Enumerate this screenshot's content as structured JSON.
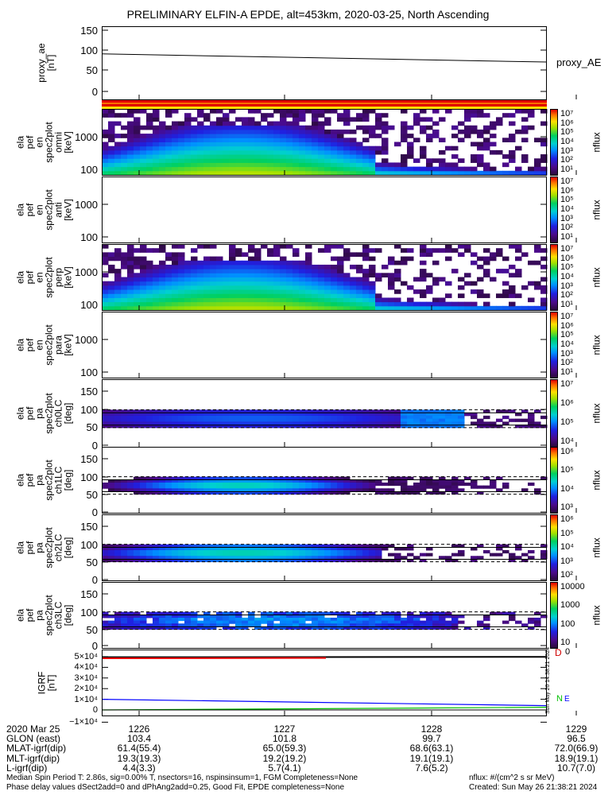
{
  "title": "PRELIMINARY ELFIN-A EPDE, alt=453km, 2020-03-25, North Ascending",
  "colors": {
    "proxy_line": "#000000",
    "igrf_total": "#000000",
    "igrf_x": "#ff0000",
    "igrf_y": "#0000ff",
    "igrf_z": "#00c000"
  },
  "panels": [
    {
      "id": "proxy_ae",
      "ylabel": [
        "proxy_ae",
        "[nT]"
      ],
      "yticks": [
        "150",
        "100",
        "50",
        "0"
      ],
      "right_label": "proxy_AE"
    },
    {
      "id": "omni",
      "ylabel": [
        "ela",
        "pef",
        "en",
        "spec2plot",
        "omni",
        "[keV]"
      ],
      "yticks": [
        "1000",
        "100"
      ],
      "cbar": [
        "10⁷",
        "10⁶",
        "10⁵",
        "10⁴",
        "10³",
        "10²",
        "10¹"
      ],
      "cbar_label": "nflux"
    },
    {
      "id": "anti",
      "ylabel": [
        "ela",
        "pef",
        "en",
        "spec2plot",
        "anti",
        "[keV]"
      ],
      "yticks": [
        "1000",
        "100"
      ],
      "cbar": [
        "10⁷",
        "10⁶",
        "10⁵",
        "10⁴",
        "10³",
        "10²",
        "10¹"
      ],
      "cbar_label": "nflux"
    },
    {
      "id": "perp",
      "ylabel": [
        "ela",
        "pef",
        "en",
        "spec2plot",
        "perp",
        "[keV]"
      ],
      "yticks": [
        "1000",
        "100"
      ],
      "cbar": [
        "10⁷",
        "10⁶",
        "10⁵",
        "10⁴",
        "10³",
        "10²",
        "10¹"
      ],
      "cbar_label": "nflux"
    },
    {
      "id": "para",
      "ylabel": [
        "ela",
        "pef",
        "en",
        "spec2plot",
        "para",
        "[keV]"
      ],
      "yticks": [
        "1000",
        "100"
      ],
      "cbar": [
        "10⁷",
        "10⁶",
        "10⁵",
        "10⁴",
        "10³",
        "10²",
        "10¹"
      ],
      "cbar_label": "nflux"
    },
    {
      "id": "ch0LC",
      "ylabel": [
        "ela",
        "pef",
        "pa",
        "spec2plot",
        "ch0LC",
        "[deg]"
      ],
      "yticks": [
        "150",
        "100",
        "50",
        "0"
      ],
      "cbar": [
        "10⁷",
        "10⁶",
        "10⁵",
        "10⁴"
      ],
      "cbar_label": "nflux"
    },
    {
      "id": "ch1LC",
      "ylabel": [
        "ela",
        "pef",
        "pa",
        "spec2plot",
        "ch1LC",
        "[deg]"
      ],
      "yticks": [
        "150",
        "100",
        "50",
        "0"
      ],
      "cbar": [
        "10⁶",
        "10⁵",
        "10⁴",
        "10³"
      ],
      "cbar_label": "nflux"
    },
    {
      "id": "ch2LC",
      "ylabel": [
        "ela",
        "pef",
        "pa",
        "spec2plot",
        "ch2LC",
        "[deg]"
      ],
      "yticks": [
        "150",
        "100",
        "50",
        "0"
      ],
      "cbar": [
        "10⁶",
        "10⁵",
        "10⁴",
        "10³",
        "10²"
      ],
      "cbar_label": "nflux"
    },
    {
      "id": "ch3LC",
      "ylabel": [
        "ela",
        "pef",
        "pa",
        "spec2plot",
        "ch3LC",
        "[deg]"
      ],
      "yticks": [
        "150",
        "100",
        "50",
        "0"
      ],
      "cbar": [
        "10000",
        "1000",
        "100",
        "10"
      ],
      "cbar_label": "nflux"
    },
    {
      "id": "igrf",
      "ylabel": [
        "IGRF",
        "[nT]"
      ],
      "yticks": [
        "5×10⁴",
        "4×10⁴",
        "3×10⁴",
        "2×10⁴",
        "1×10⁴",
        "0",
        "−1×10⁴"
      ]
    }
  ],
  "chart_data": {
    "type": "line",
    "title": "PRELIMINARY ELFIN-A EPDE, alt=453km, 2020-03-25, North Ascending",
    "x_ticks": [
      "1226",
      "1227",
      "1228",
      "1229"
    ],
    "proxy_ae": {
      "ylabel": "proxy_ae [nT]",
      "ylim": [
        -10,
        160
      ],
      "x": [
        0,
        1
      ],
      "values": [
        92,
        72
      ]
    },
    "igrf": {
      "ylabel": "IGRF [nT]",
      "ylim": [
        -15000,
        55000
      ],
      "series": [
        {
          "name": "total",
          "values": [
            49500,
            49800
          ]
        },
        {
          "name": "x",
          "values": [
            48500,
            48800
          ]
        },
        {
          "name": "y",
          "values": [
            10000,
            4000
          ]
        },
        {
          "name": "z",
          "values": [
            0,
            2500
          ]
        }
      ]
    },
    "spectrograms": "energy (keV, log 63–7000) and pitch-angle (deg 0–180) flux spectrograms, nflux colour scale"
  },
  "footer": {
    "rows": [
      [
        "2020 Mar 25",
        "1226",
        "1227",
        "1228",
        "1229"
      ],
      [
        "GLON (east)",
        "103.4",
        "101.8",
        "99.7",
        "96.5"
      ],
      [
        "MLAT-igrf(dip)",
        "61.4(55.4)",
        "65.0(59.3)",
        "68.6(63.1)",
        "72.0(66.9)"
      ],
      [
        "MLT-igrf(dip)",
        "19.3(19.3)",
        "19.2(19.2)",
        "19.1(19.1)",
        "18.9(19.1)"
      ],
      [
        "L-igrf(dip)",
        "4.4(3.3)",
        "5.7(4.1)",
        "7.6(5.2)",
        "10.7(7.0)"
      ]
    ],
    "note1": "Median Spin Period T: 2.86s, sig=0.00% T, nsectors=16, nspinsinsum=1, FGM Completeness=None",
    "note2": "Phase delay values dSect2add=0 and dPhAng2add=0.25, Good Fit, EPDE completeness=None",
    "units": "nflux: #/(cm^2 s sr MeV)",
    "created": "Created: Sun May 26 21:38:21 2024",
    "side_stamp": "Sun May 26 14:38:21 2024",
    "igrf_letters": [
      "N",
      "E"
    ],
    "d_letter": "D",
    "o_letter": "0"
  }
}
